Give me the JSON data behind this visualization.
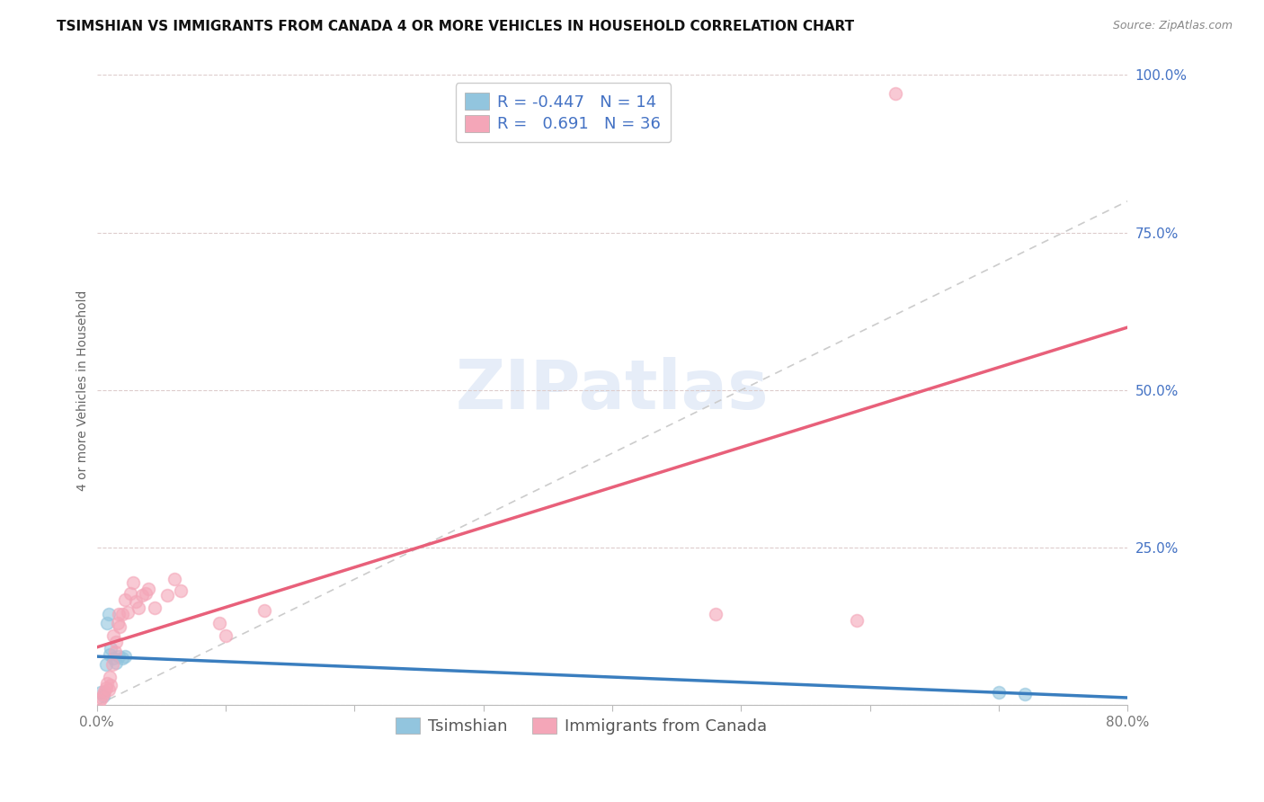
{
  "title": "TSIMSHIAN VS IMMIGRANTS FROM CANADA 4 OR MORE VEHICLES IN HOUSEHOLD CORRELATION CHART",
  "source": "Source: ZipAtlas.com",
  "ylabel": "4 or more Vehicles in Household",
  "xlabel": "",
  "watermark": "ZIPatlas",
  "legend_label1": "Tsimshian",
  "legend_label2": "Immigrants from Canada",
  "R1": -0.447,
  "N1": 14,
  "R2": 0.691,
  "N2": 36,
  "color1": "#92c5de",
  "color2": "#f4a6b8",
  "line_color1": "#3a7ebf",
  "line_color2": "#e8607a",
  "diag_color": "#cccccc",
  "xlim": [
    0.0,
    0.8
  ],
  "ylim": [
    0.0,
    1.0
  ],
  "xticks": [
    0.0,
    0.1,
    0.2,
    0.3,
    0.4,
    0.5,
    0.6,
    0.7,
    0.8
  ],
  "yticks_right": [
    0.0,
    0.25,
    0.5,
    0.75,
    1.0
  ],
  "ytick_labels_right": [
    "",
    "25.0%",
    "50.0%",
    "75.0%",
    "100.0%"
  ],
  "xtick_labels": [
    "0.0%",
    "",
    "",
    "",
    "",
    "",
    "",
    "",
    "80.0%"
  ],
  "tsimshian_x": [
    0.003,
    0.005,
    0.007,
    0.008,
    0.009,
    0.01,
    0.011,
    0.013,
    0.015,
    0.017,
    0.02,
    0.022,
    0.7,
    0.72
  ],
  "tsimshian_y": [
    0.02,
    0.015,
    0.065,
    0.13,
    0.145,
    0.08,
    0.09,
    0.075,
    0.068,
    0.078,
    0.075,
    0.078,
    0.02,
    0.018
  ],
  "immigrants_x": [
    0.002,
    0.004,
    0.005,
    0.006,
    0.007,
    0.008,
    0.009,
    0.01,
    0.011,
    0.012,
    0.013,
    0.014,
    0.015,
    0.016,
    0.017,
    0.018,
    0.02,
    0.022,
    0.024,
    0.026,
    0.028,
    0.03,
    0.032,
    0.035,
    0.038,
    0.04,
    0.045,
    0.055,
    0.06,
    0.065,
    0.095,
    0.1,
    0.13,
    0.48,
    0.59,
    0.62
  ],
  "immigrants_y": [
    0.008,
    0.012,
    0.018,
    0.022,
    0.028,
    0.035,
    0.025,
    0.045,
    0.032,
    0.065,
    0.11,
    0.085,
    0.1,
    0.13,
    0.145,
    0.125,
    0.145,
    0.168,
    0.148,
    0.178,
    0.195,
    0.165,
    0.155,
    0.175,
    0.178,
    0.185,
    0.155,
    0.175,
    0.2,
    0.182,
    0.13,
    0.11,
    0.15,
    0.145,
    0.135,
    0.97
  ],
  "title_fontsize": 11,
  "label_fontsize": 10,
  "tick_fontsize": 11,
  "legend_fontsize": 13,
  "watermark_fontsize": 55,
  "watermark_color": "#c8d8f0",
  "watermark_alpha": 0.45
}
